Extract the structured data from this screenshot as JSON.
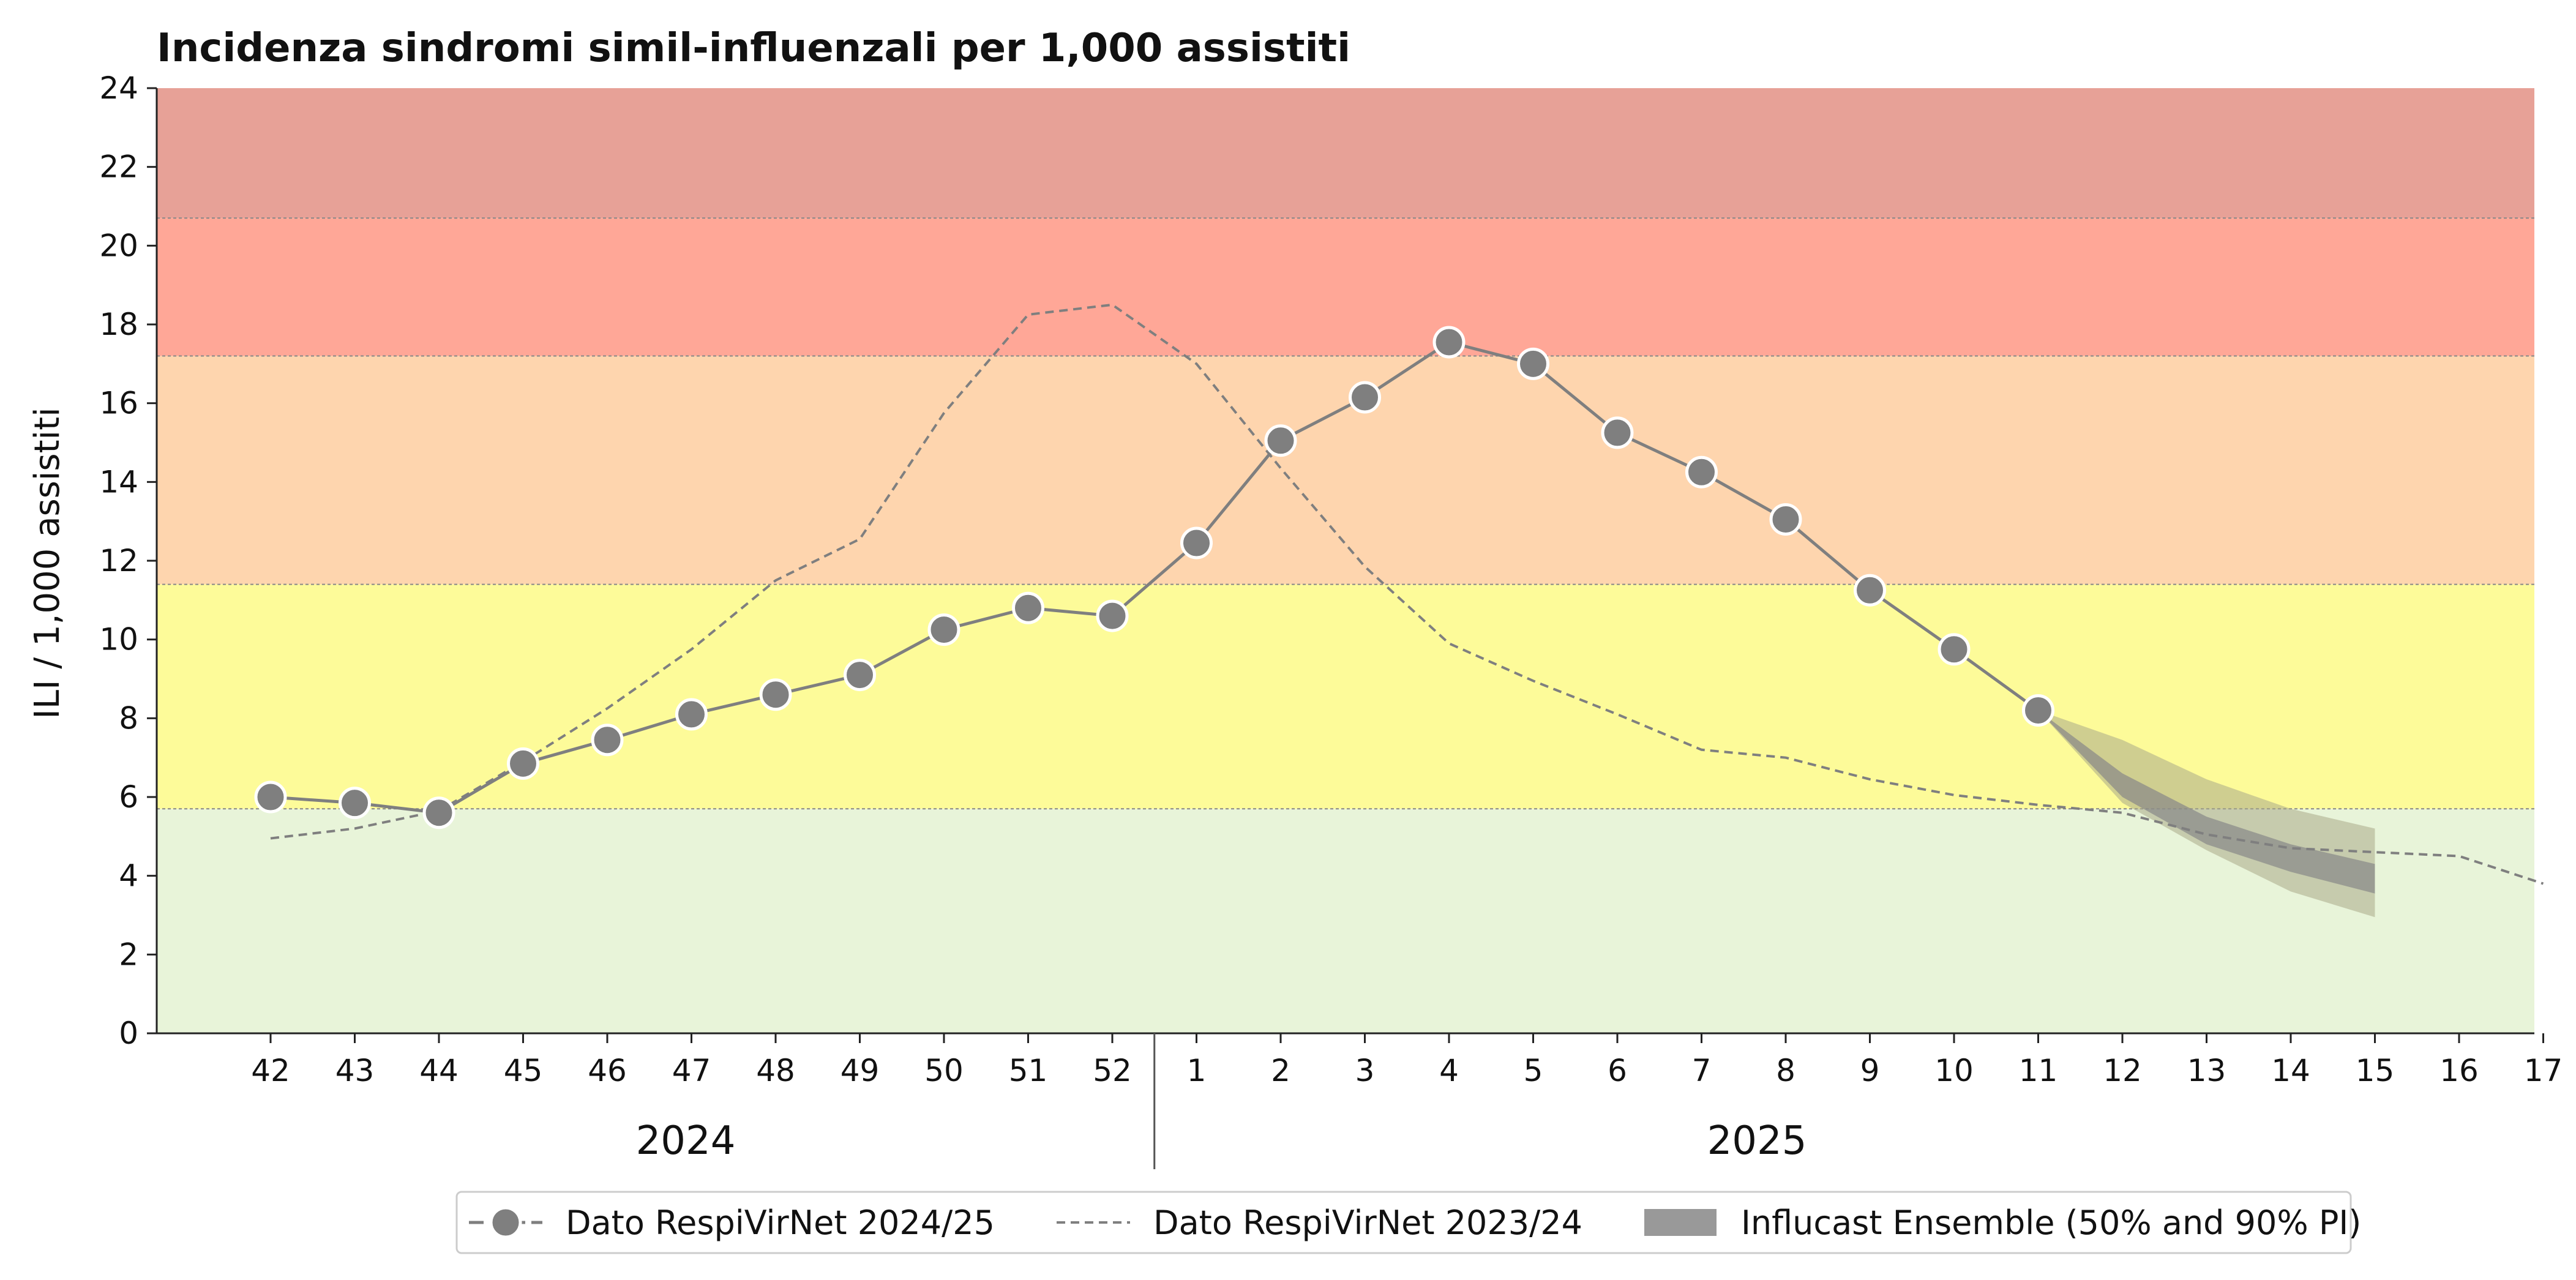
{
  "chart_data": {
    "type": "line",
    "title": "Incidenza sindromi simil-influenzali per 1,000 assistiti",
    "ylabel": "ILI / 1,000 assistiti",
    "ylim": [
      0,
      24
    ],
    "yticks": [
      0,
      2,
      4,
      6,
      8,
      10,
      12,
      14,
      16,
      18,
      20,
      22,
      24
    ],
    "x_weeks": [
      "42",
      "43",
      "44",
      "45",
      "46",
      "47",
      "48",
      "49",
      "50",
      "51",
      "52",
      "1",
      "2",
      "3",
      "4",
      "5",
      "6",
      "7",
      "8",
      "9",
      "10",
      "11",
      "12",
      "13",
      "14",
      "15",
      "16",
      "17"
    ],
    "year_labels": [
      "2024",
      "2025"
    ],
    "thresholds": [
      5.7,
      11.4,
      17.2,
      20.7
    ],
    "band_colors": [
      "#e8f4d9",
      "#fdfb99",
      "#fed5ae",
      "#ffa797",
      "#e7a197"
    ],
    "series": [
      {
        "name": "Dato RespiVirNet 2024/25",
        "style": "solid-markers",
        "color": "#7f7f7f",
        "values": [
          6.0,
          5.85,
          5.6,
          6.85,
          7.45,
          8.1,
          8.6,
          9.1,
          10.25,
          10.8,
          10.6,
          12.45,
          15.05,
          16.15,
          17.55,
          17.0,
          15.25,
          14.25,
          13.05,
          11.25,
          9.75,
          8.2
        ]
      },
      {
        "name": "Dato RespiVirNet 2023/24",
        "style": "dashed",
        "color": "#7f7f7f",
        "values": [
          4.95,
          5.2,
          5.65,
          6.9,
          8.25,
          9.75,
          11.5,
          12.55,
          15.75,
          18.25,
          18.5,
          17.0,
          14.35,
          11.85,
          9.9,
          8.95,
          8.1,
          7.2,
          7.0,
          6.45,
          6.05,
          5.8,
          5.6,
          5.05,
          4.7,
          4.6,
          4.5,
          3.8
        ]
      }
    ],
    "forecast": {
      "name": "Influcast Ensemble (50% and 90% PI)",
      "start_index": 21,
      "start_value": 8.2,
      "weeks_index": [
        22,
        23,
        24,
        25
      ],
      "pi90_low": [
        5.85,
        4.65,
        3.6,
        2.95
      ],
      "pi90_high": [
        7.45,
        6.45,
        5.7,
        5.2
      ],
      "pi50_low": [
        6.0,
        4.8,
        4.1,
        3.55
      ],
      "pi50_high": [
        6.6,
        5.5,
        4.8,
        4.3
      ],
      "pi90_color": "#aaaa88",
      "pi50_color": "#888888"
    },
    "legend_position": "bottom-center"
  }
}
